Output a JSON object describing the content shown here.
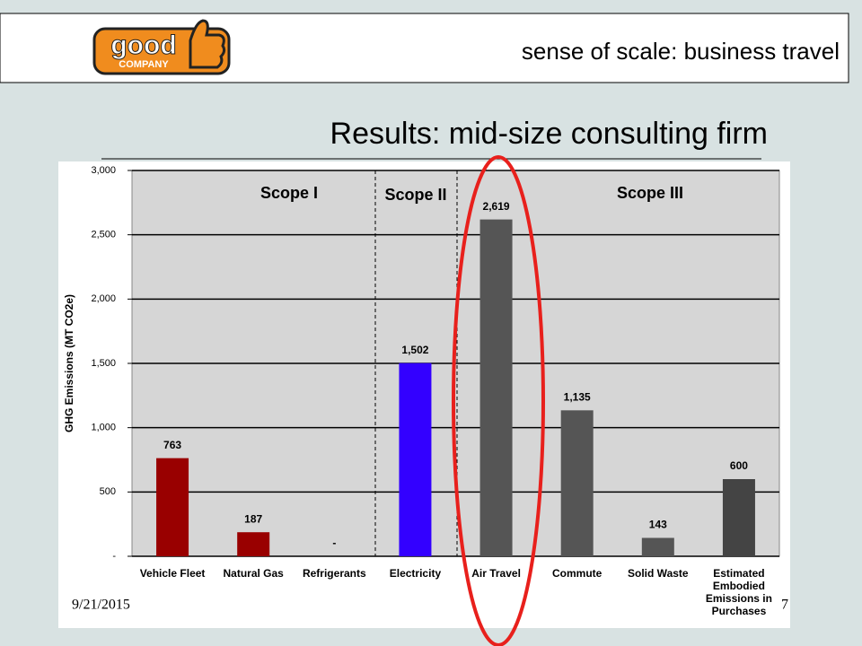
{
  "header": {
    "title": "sense of scale:  business travel",
    "logo": {
      "word": "good",
      "subword": "COMPANY"
    }
  },
  "slide_title": "Results:  mid-size consulting firm",
  "footer": {
    "date": "9/21/2015",
    "page": "7"
  },
  "chart_data": {
    "type": "bar",
    "y_label": "GHG Emissions (MT CO2e)",
    "categories": [
      "Vehicle Fleet",
      "Natural Gas",
      "Refrigerants",
      "Electricity",
      "Air Travel",
      "Commute",
      "Solid Waste",
      "Estimated Embodied Emissions in Purchases"
    ],
    "values": [
      763,
      187,
      0,
      1502,
      2619,
      1135,
      143,
      600
    ],
    "value_labels": [
      "763",
      "187",
      "-",
      "1,502",
      "2,619",
      "1,135",
      "143",
      "600"
    ],
    "colors": [
      "#990000",
      "#990000",
      "#990000",
      "#3300ff",
      "#555555",
      "#555555",
      "#555555",
      "#444444"
    ],
    "ylim": [
      0,
      3000
    ],
    "yticks": [
      {
        "value": 0,
        "label": "-"
      },
      500,
      {
        "value": 1000,
        "label": "1,000"
      },
      {
        "value": 1500,
        "label": "1,500"
      },
      {
        "value": 2000,
        "label": "2,000"
      },
      {
        "value": 2500,
        "label": "2,500"
      },
      {
        "value": 3000,
        "label": "3,000"
      }
    ],
    "grid": true,
    "annotations": [
      "Scope I",
      "Scope II",
      "Scope III"
    ]
  }
}
